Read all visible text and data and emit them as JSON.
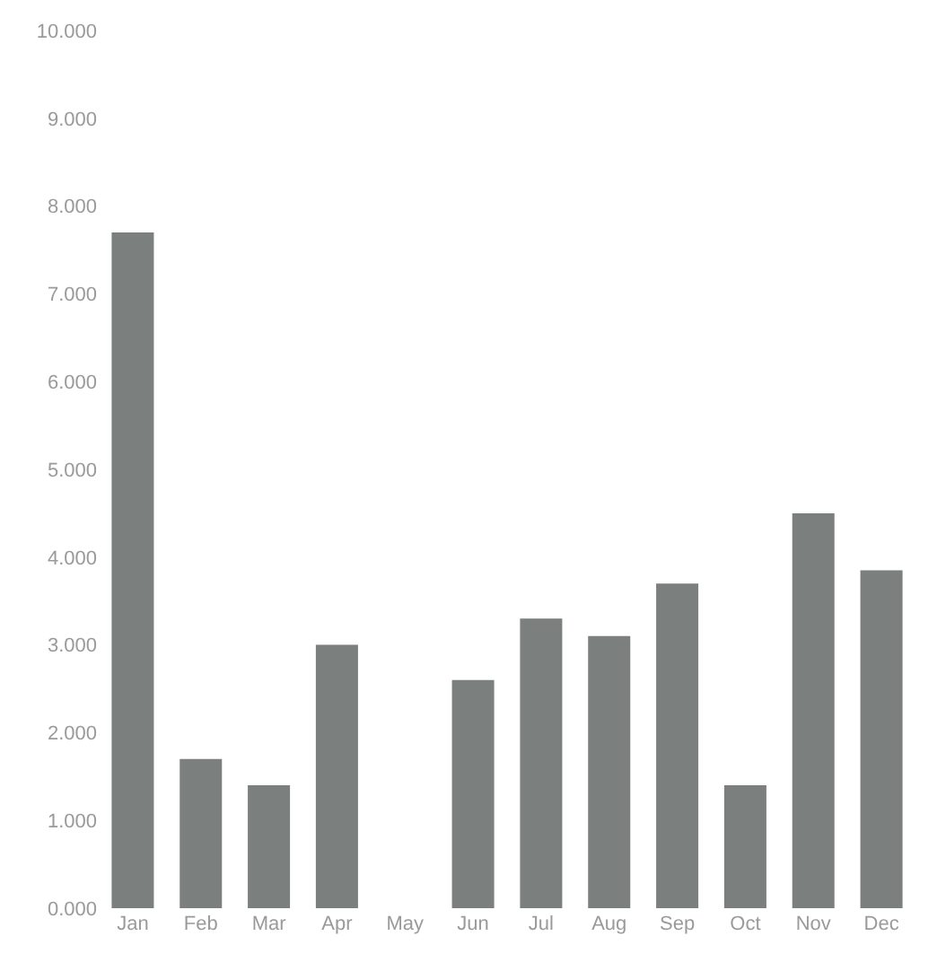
{
  "chart_data": {
    "type": "bar",
    "categories": [
      "Jan",
      "Feb",
      "Mar",
      "Apr",
      "May",
      "Jun",
      "Jul",
      "Aug",
      "Sep",
      "Oct",
      "Nov",
      "Dec"
    ],
    "values": [
      7.7,
      1.7,
      1.4,
      3.0,
      0,
      2.6,
      3.3,
      3.1,
      3.7,
      1.4,
      4.5,
      3.85
    ],
    "color": "#7b807e",
    "ylim": [
      0,
      10
    ],
    "yticks": [
      {
        "value": 0,
        "label": "0.000"
      },
      {
        "value": 1,
        "label": "1.000"
      },
      {
        "value": 2,
        "label": "2.000"
      },
      {
        "value": 3,
        "label": "3.000"
      },
      {
        "value": 4,
        "label": "4.000"
      },
      {
        "value": 5,
        "label": "5.000"
      },
      {
        "value": 6,
        "label": "6.000"
      },
      {
        "value": 7,
        "label": "7.000"
      },
      {
        "value": 8,
        "label": "8.000"
      },
      {
        "value": 9,
        "label": "9.000"
      },
      {
        "value": 10,
        "label": "10.000"
      }
    ],
    "legend": false
  }
}
